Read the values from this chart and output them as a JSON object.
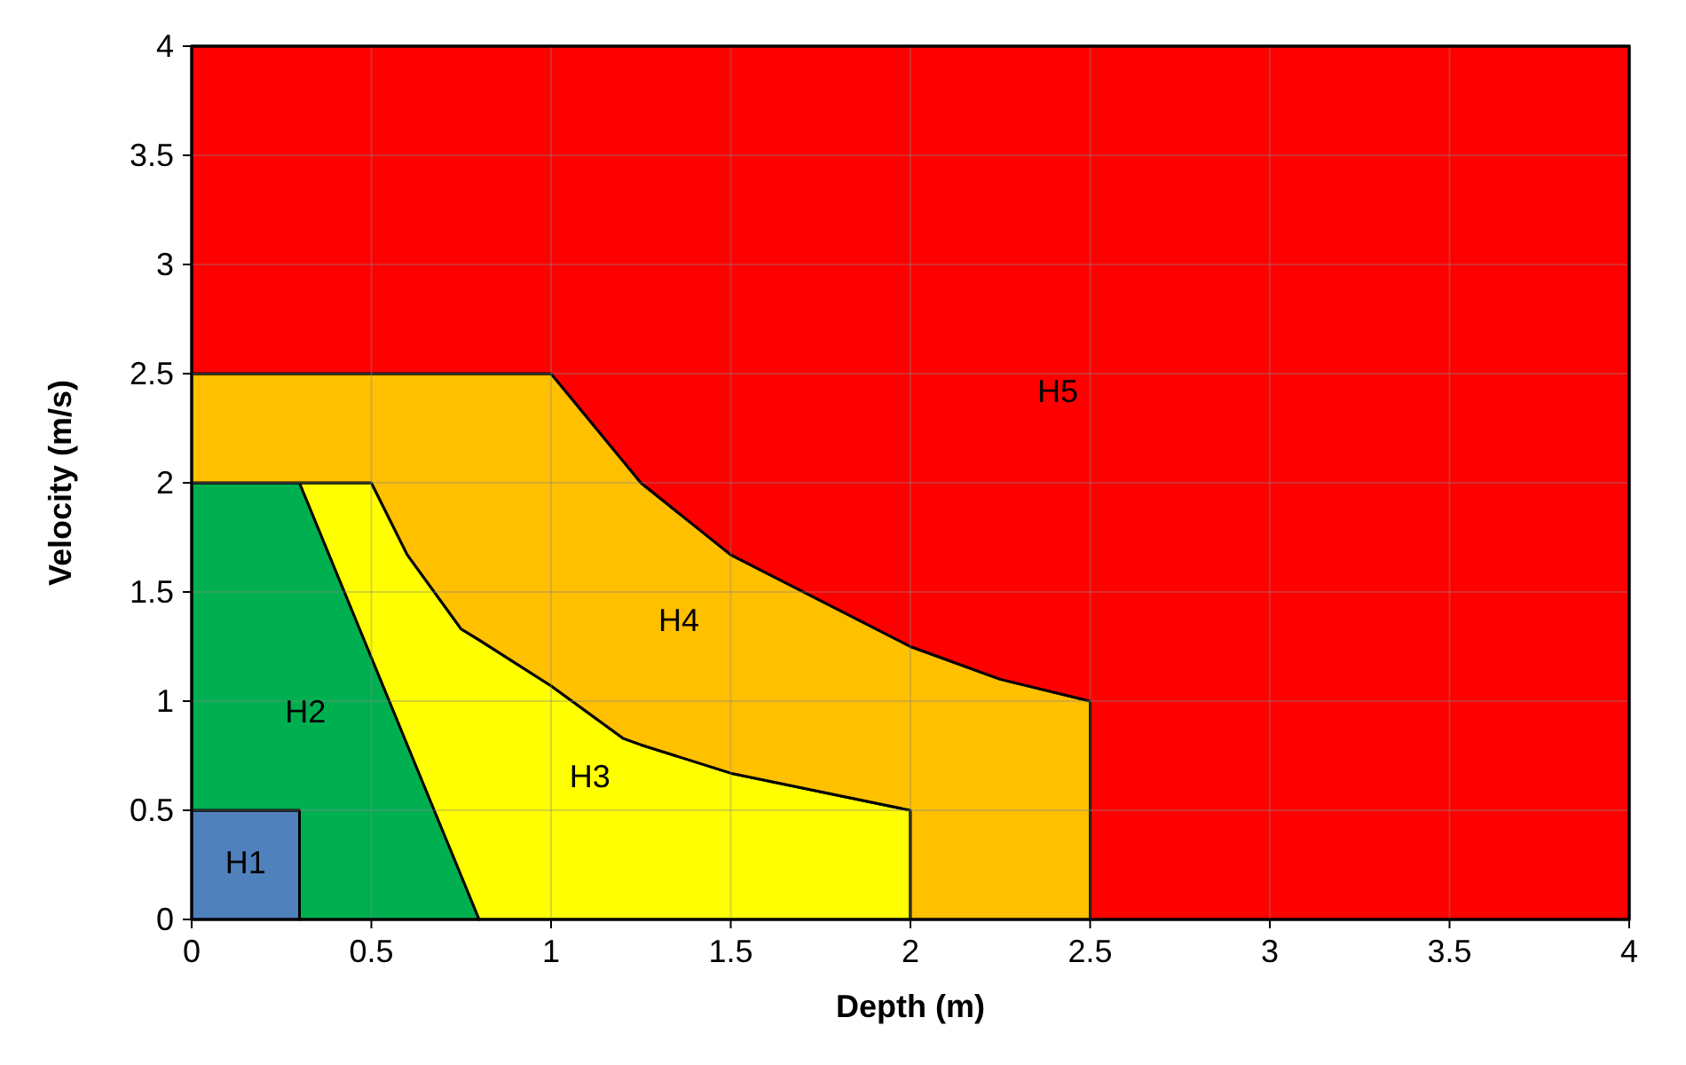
{
  "chart_data": {
    "type": "area",
    "stacked": true,
    "xlabel": "Depth (m)",
    "ylabel": "Velocity (m/s)",
    "xlim": [
      0,
      4
    ],
    "ylim": [
      0,
      4
    ],
    "xticks": [
      0,
      0.5,
      1,
      1.5,
      2,
      2.5,
      3,
      3.5,
      4
    ],
    "yticks": [
      0,
      0.5,
      1,
      1.5,
      2,
      2.5,
      3,
      3.5,
      4
    ],
    "grid": true,
    "x": [
      0,
      0.3,
      0.3,
      0.5,
      0.6,
      0.75,
      0.8,
      1,
      1.2,
      1.25,
      1.5,
      2,
      2,
      2.25,
      2.5,
      2.5,
      4
    ],
    "series": [
      {
        "name": "H1",
        "color": "#4f81bd",
        "values": [
          0.5,
          0.5,
          0,
          null,
          null,
          null,
          null,
          null,
          null,
          null,
          null,
          null,
          null,
          null,
          null,
          null,
          null
        ]
      },
      {
        "name": "H2",
        "color": "#00b050",
        "values": [
          1.5,
          1.5,
          2,
          1.2,
          0.8,
          0.2,
          0,
          null,
          null,
          null,
          null,
          null,
          null,
          null,
          null,
          null,
          null
        ]
      },
      {
        "name": "H3",
        "color": "#ffff00",
        "values": [
          null,
          null,
          0,
          0.8,
          0.87,
          1.13,
          1.28,
          1.07,
          0.83,
          0.8,
          0.67,
          0.5,
          0,
          null,
          null,
          null,
          null
        ]
      },
      {
        "name": "H4",
        "color": "#ffc000",
        "values": [
          0.5,
          0.5,
          0.5,
          0.5,
          0.83,
          1.17,
          1.22,
          1.43,
          1.27,
          1.2,
          1,
          0.75,
          1.25,
          1.1,
          1,
          0,
          null
        ]
      },
      {
        "name": "H5",
        "color": "#ff0000",
        "values": [
          1.5,
          1.5,
          1.5,
          1.5,
          1.5,
          1.5,
          1.5,
          1.5,
          1.9,
          2,
          2.33,
          2.75,
          2.75,
          2.9,
          3,
          4,
          4
        ]
      }
    ]
  }
}
